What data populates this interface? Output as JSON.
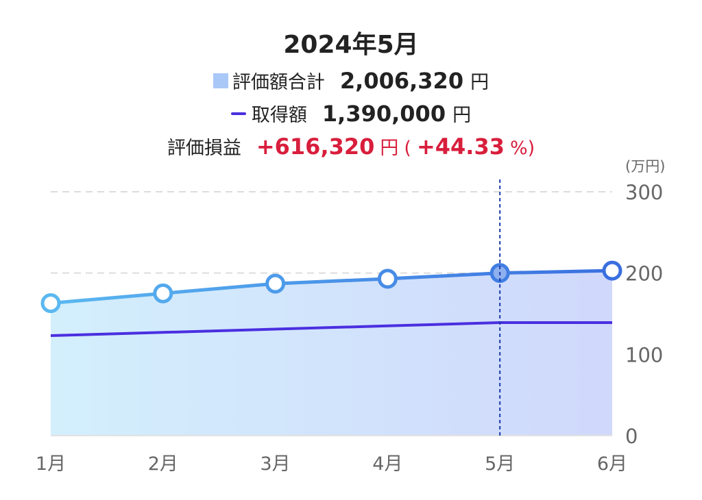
{
  "header": {
    "title": "2024年5月",
    "total_label": "評価額合計",
    "total_value": "2,006,320",
    "total_unit": "円",
    "cost_label": "取得額",
    "cost_value": "1,390,000",
    "cost_unit": "円",
    "pl_label": "評価損益",
    "pl_value": "+616,320",
    "pl_unit": "円",
    "pl_open": "(",
    "pl_pct": "+44.33",
    "pl_pct_unit": "%)"
  },
  "chart_data": {
    "type": "line",
    "title": "2024年5月",
    "x": [
      "1月",
      "2月",
      "3月",
      "4月",
      "5月",
      "6月"
    ],
    "yunit": "(万円)",
    "ylim": [
      0,
      300
    ],
    "yticks": [
      "0",
      "100",
      "200",
      "300"
    ],
    "grid": true,
    "selected_index": 4,
    "series": [
      {
        "name": "評価額合計",
        "style": "area-line-markers",
        "values": [
          163,
          175,
          187,
          193,
          200,
          203
        ]
      },
      {
        "name": "取得額",
        "style": "line",
        "values": [
          123,
          127,
          131,
          135,
          139,
          139
        ]
      }
    ],
    "colors": {
      "total_start": "#5ab8f0",
      "total_end": "#3b6fe0",
      "area_start": "#d3effc",
      "area_end": "#d0d8fb",
      "cost": "#4a2fe0",
      "cursor": "#1a3aa8",
      "positive": "#d81e3c"
    }
  }
}
